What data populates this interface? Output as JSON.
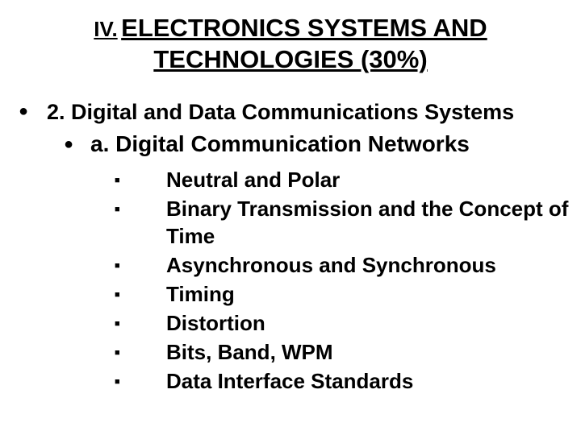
{
  "heading": {
    "prefix": "IV.",
    "title_line1": "ELECTRONICS  SYSTEMS AND",
    "title_line2": "TECHNOLOGIES (30%)"
  },
  "section": {
    "bullet": "●",
    "text": "2. Digital and Data Communications Systems",
    "sub": {
      "bullet": "●",
      "text": "a. Digital Communication Networks"
    }
  },
  "square": "■",
  "items": [
    "Neutral and Polar",
    "Binary Transmission and the Concept of Time",
    "Asynchronous and Synchronous",
    "Timing",
    "Distortion",
    "Bits, Band, WPM",
    "Data Interface Standards"
  ],
  "colors": {
    "text": "#000000",
    "background": "#ffffff"
  }
}
